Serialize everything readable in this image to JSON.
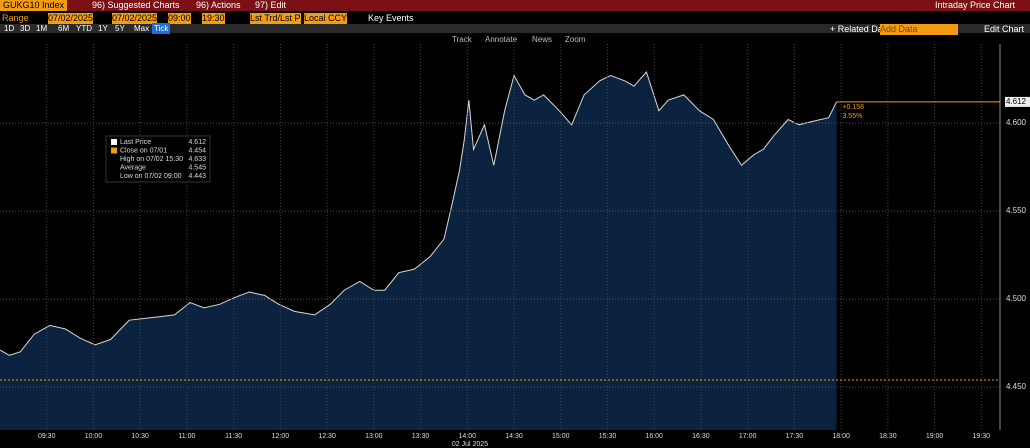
{
  "toolbar": {
    "security": "GUKG10 Index",
    "menu": [
      "96) Suggested Charts",
      "96) Actions",
      "97) Edit"
    ],
    "view_title": "Intraday Price Chart",
    "range_label": "Range",
    "start_date": "07/02/2025",
    "end_date": "07/02/2025",
    "start_time": "09:00",
    "end_time": "19:30",
    "mode": "Lst Trd/Lst P",
    "currency": "Local CCY",
    "key_events": "Key Events",
    "periods": [
      "1D",
      "3D",
      "1M",
      "6M",
      "YTD",
      "1Y",
      "5Y",
      "Max",
      "Tick"
    ],
    "related": "+ Related Dat",
    "add_data": "Add Data",
    "edit_chart": "Edit Chart",
    "tools": [
      "Track",
      "Annotate",
      "News",
      "Zoom"
    ]
  },
  "chart_data": {
    "type": "area",
    "color": "#0c2340",
    "line_color": "#d8d8d8",
    "x": [
      "09:00",
      "09:06",
      "09:13",
      "09:22",
      "09:32",
      "09:42",
      "09:51",
      "10:01",
      "10:11",
      "10:23",
      "10:33",
      "10:43",
      "10:52",
      "11:02",
      "11:11",
      "11:21",
      "11:31",
      "11:40",
      "11:50",
      "11:59",
      "12:09",
      "12:22",
      "12:32",
      "12:41",
      "12:51",
      "13:00",
      "13:07",
      "13:16",
      "13:26",
      "13:36",
      "13:45",
      "13:50",
      "13:55",
      "13:58",
      "14:01",
      "14:04",
      "14:11",
      "14:17",
      "14:24",
      "14:30",
      "14:37",
      "14:43",
      "14:49",
      "14:59",
      "15:07",
      "15:15",
      "15:25",
      "15:32",
      "15:41",
      "15:47",
      "15:55",
      "16:03",
      "16:09",
      "16:19",
      "16:29",
      "16:38",
      "16:48",
      "16:56",
      "17:04",
      "17:10",
      "17:17",
      "17:26",
      "17:33",
      "17:42",
      "17:52",
      "17:57"
    ],
    "values": [
      4.471,
      4.468,
      4.47,
      4.48,
      4.485,
      4.483,
      4.478,
      4.474,
      4.477,
      4.488,
      4.489,
      4.49,
      4.491,
      4.498,
      4.495,
      4.497,
      4.501,
      4.504,
      4.502,
      4.497,
      4.493,
      4.491,
      4.497,
      4.505,
      4.51,
      4.505,
      4.505,
      4.515,
      4.517,
      4.524,
      4.534,
      4.553,
      4.573,
      4.59,
      4.613,
      4.585,
      4.599,
      4.576,
      4.607,
      4.627,
      4.616,
      4.613,
      4.616,
      4.607,
      4.599,
      4.616,
      4.624,
      4.627,
      4.624,
      4.621,
      4.629,
      4.607,
      4.613,
      4.616,
      4.607,
      4.602,
      4.587,
      4.576,
      4.582,
      4.585,
      4.593,
      4.602,
      4.599,
      4.601,
      4.603,
      4.612
    ],
    "xlim": [
      "09:00",
      "19:42"
    ],
    "xticks": [
      "09:30",
      "10:00",
      "10:30",
      "11:00",
      "11:30",
      "12:00",
      "12:30",
      "13:00",
      "13:30",
      "14:00",
      "14:30",
      "15:00",
      "15:30",
      "16:00",
      "16:30",
      "17:00",
      "17:30",
      "18:00",
      "18:30",
      "19:00",
      "19:30"
    ],
    "date_label": "02 Jul 2025",
    "ylim": [
      4.4256,
      4.6449
    ],
    "yticks": [
      {
        "value": 4.45,
        "label": "4.450"
      },
      {
        "value": 4.5,
        "label": "4.500"
      },
      {
        "value": 4.55,
        "label": "4.550"
      },
      {
        "value": 4.6,
        "label": "4.600"
      }
    ],
    "grid": true,
    "close_line": {
      "value": 4.454,
      "color": "#f39c12"
    },
    "last": {
      "value": 4.612,
      "change": "+0.158",
      "change_pct": "3.55%"
    },
    "legend": [
      {
        "label": "Last Price",
        "value": 4.612
      },
      {
        "label": "Close on 07/01",
        "value": 4.454
      },
      {
        "label": "High on 07/02 15:30",
        "value": 4.633
      },
      {
        "label": "Average",
        "value": 4.545
      },
      {
        "label": "Low on 07/02 09:00",
        "value": 4.443
      }
    ]
  }
}
